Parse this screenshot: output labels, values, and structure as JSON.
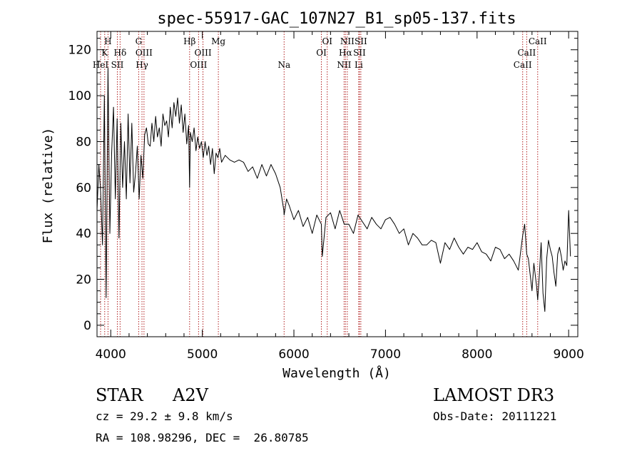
{
  "chart_data": {
    "type": "line",
    "title": "spec-55917-GAC_107N27_B1_sp05-137.fits",
    "xlabel": "Wavelength (Å)",
    "ylabel": "Flux (relative)",
    "xlim": [
      3850,
      9100
    ],
    "ylim": [
      -5,
      128
    ],
    "xticks": [
      4000,
      5000,
      6000,
      7000,
      8000,
      9000
    ],
    "yticks": [
      0,
      20,
      40,
      60,
      80,
      100,
      120
    ],
    "grid": false,
    "series": [
      {
        "name": "flux",
        "x": [
          3850,
          3870,
          3890,
          3910,
          3930,
          3950,
          3970,
          3990,
          4010,
          4030,
          4050,
          4070,
          4090,
          4110,
          4130,
          4150,
          4170,
          4190,
          4210,
          4230,
          4250,
          4270,
          4290,
          4310,
          4330,
          4350,
          4370,
          4390,
          4410,
          4430,
          4450,
          4470,
          4490,
          4510,
          4530,
          4550,
          4570,
          4590,
          4610,
          4630,
          4650,
          4670,
          4690,
          4710,
          4730,
          4750,
          4770,
          4790,
          4810,
          4830,
          4850,
          4861,
          4870,
          4890,
          4910,
          4930,
          4950,
          4970,
          4990,
          5010,
          5030,
          5050,
          5070,
          5090,
          5110,
          5130,
          5150,
          5170,
          5190,
          5210,
          5250,
          5300,
          5350,
          5400,
          5450,
          5500,
          5550,
          5600,
          5650,
          5700,
          5750,
          5800,
          5850,
          5890,
          5893,
          5920,
          5950,
          6000,
          6050,
          6100,
          6150,
          6200,
          6250,
          6300,
          6310,
          6350,
          6400,
          6450,
          6500,
          6550,
          6563,
          6600,
          6650,
          6700,
          6750,
          6800,
          6850,
          6900,
          6950,
          7000,
          7050,
          7100,
          7150,
          7200,
          7250,
          7300,
          7350,
          7400,
          7450,
          7500,
          7550,
          7600,
          7650,
          7700,
          7750,
          7800,
          7850,
          7900,
          7950,
          8000,
          8050,
          8100,
          8150,
          8200,
          8250,
          8300,
          8350,
          8400,
          8450,
          8498,
          8520,
          8542,
          8560,
          8600,
          8620,
          8650,
          8662,
          8680,
          8700,
          8720,
          8740,
          8760,
          8780,
          8800,
          8820,
          8840,
          8860,
          8880,
          8900,
          8920,
          8940,
          8960,
          8980,
          9000,
          9020
        ],
        "y": [
          50,
          70,
          58,
          35,
          100,
          12,
          112,
          40,
          75,
          95,
          55,
          90,
          38,
          88,
          60,
          80,
          55,
          92,
          62,
          88,
          58,
          66,
          78,
          55,
          74,
          64,
          83,
          86,
          79,
          78,
          88,
          80,
          91,
          82,
          86,
          78,
          92,
          87,
          89,
          82,
          95,
          86,
          97,
          91,
          99,
          88,
          96,
          84,
          92,
          79,
          87,
          60,
          84,
          80,
          86,
          76,
          82,
          77,
          80,
          73,
          80,
          74,
          78,
          70,
          77,
          66,
          75,
          73,
          77,
          71,
          74,
          72,
          71,
          72,
          71,
          67,
          69,
          64,
          70,
          65,
          70,
          66,
          60,
          50,
          48,
          55,
          52,
          46,
          50,
          43,
          47,
          40,
          48,
          44,
          30,
          47,
          49,
          42,
          50,
          44,
          44,
          44,
          40,
          48,
          45,
          42,
          47,
          44,
          42,
          46,
          47,
          44,
          40,
          42,
          35,
          40,
          38,
          35,
          35,
          37,
          36,
          27,
          36,
          33,
          38,
          34,
          31,
          34,
          33,
          36,
          32,
          31,
          28,
          34,
          33,
          29,
          31,
          28,
          24,
          39,
          44,
          31,
          29,
          15,
          27,
          17,
          11,
          22,
          36,
          14,
          6,
          29,
          37,
          33,
          30,
          23,
          17,
          31,
          34,
          30,
          24,
          28,
          26,
          50,
          30
        ]
      }
    ],
    "lines": [
      {
        "label": "H",
        "x": 3970,
        "row": 1
      },
      {
        "label": "K",
        "x": 3934,
        "row": 2
      },
      {
        "label": "HeI",
        "x": 3889,
        "row": 3
      },
      {
        "label": "SII",
        "x": 4072,
        "row": 3
      },
      {
        "label": "Hδ",
        "x": 4102,
        "row": 2
      },
      {
        "label": "G",
        "x": 4305,
        "row": 1
      },
      {
        "label": "OIII",
        "x": 4363,
        "row": 2
      },
      {
        "label": "Hγ",
        "x": 4341,
        "row": 3
      },
      {
        "label": "Hβ",
        "x": 4861,
        "row": 1
      },
      {
        "label": "OIII",
        "x": 5007,
        "row": 2
      },
      {
        "label": "OIII",
        "x": 4959,
        "row": 3
      },
      {
        "label": "Mg",
        "x": 5175,
        "row": 1
      },
      {
        "label": "Na",
        "x": 5893,
        "row": 3
      },
      {
        "label": "OI",
        "x": 6364,
        "row": 1
      },
      {
        "label": "OI",
        "x": 6300,
        "row": 2
      },
      {
        "label": "NII",
        "x": 6583,
        "row": 1
      },
      {
        "label": "Hα",
        "x": 6563,
        "row": 2
      },
      {
        "label": "NII",
        "x": 6548,
        "row": 3
      },
      {
        "label": "SII",
        "x": 6731,
        "row": 1
      },
      {
        "label": "SII",
        "x": 6716,
        "row": 2
      },
      {
        "label": "Li",
        "x": 6708,
        "row": 3
      },
      {
        "label": "CaII",
        "x": 8662,
        "row": 1
      },
      {
        "label": "CaII",
        "x": 8542,
        "row": 2
      },
      {
        "label": "CaII",
        "x": 8498,
        "row": 3
      }
    ],
    "colors": {
      "spectrum": "#000000",
      "line_marker": "#b22222",
      "axes": "#000000"
    }
  },
  "info": {
    "object_type": "STAR",
    "spectral_class": "A2V",
    "cz": "cz = 29.2 ± 9.8 km/s",
    "coords": "RA = 108.98296, DEC =  26.80785",
    "survey": "LAMOST DR3",
    "obs_date": "Obs-Date: 20111221"
  }
}
